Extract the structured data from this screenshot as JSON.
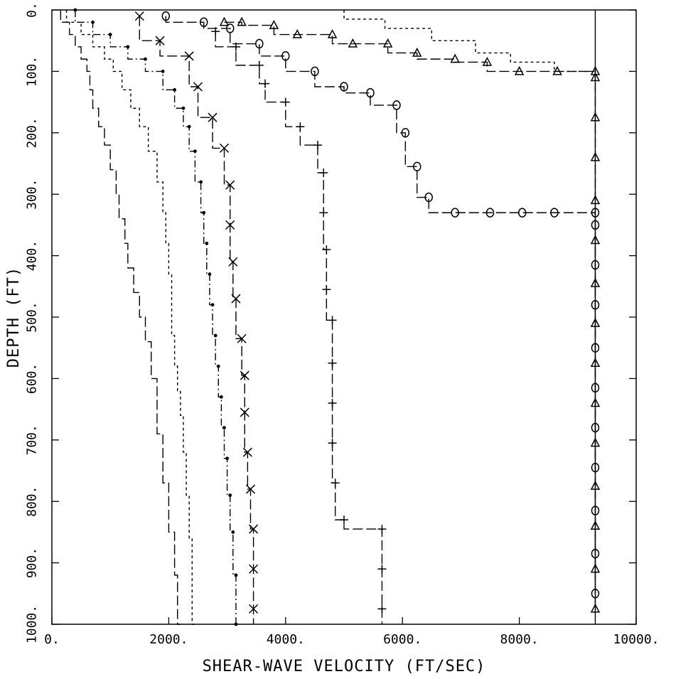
{
  "chart_data": {
    "type": "line",
    "title": "",
    "xlabel": "SHEAR-WAVE VELOCITY (FT/SEC)",
    "ylabel": "DEPTH (FT)",
    "xlim": [
      0,
      10000
    ],
    "ylim": [
      0,
      1000
    ],
    "y_inverted": true,
    "grid": false,
    "legend": "none",
    "x_ticks": [
      0,
      2000,
      4000,
      6000,
      8000,
      10000
    ],
    "x_tick_labels": [
      "0.",
      "2000.",
      "4000.",
      "6000.",
      "8000.",
      "10000."
    ],
    "y_ticks": [
      0,
      100,
      200,
      300,
      400,
      500,
      600,
      700,
      800,
      900,
      1000
    ],
    "y_tick_labels": [
      "0.",
      "100.",
      "200.",
      "300.",
      "400.",
      "500.",
      "600.",
      "700.",
      "800.",
      "900.",
      "1000."
    ],
    "series": [
      {
        "marker": "none",
        "style": "long-dash",
        "points": [
          [
            150,
            0
          ],
          [
            300,
            20
          ],
          [
            400,
            40
          ],
          [
            500,
            60
          ],
          [
            600,
            80
          ],
          [
            650,
            100
          ],
          [
            700,
            130
          ],
          [
            800,
            160
          ],
          [
            900,
            190
          ],
          [
            1000,
            220
          ],
          [
            1100,
            260
          ],
          [
            1150,
            300
          ],
          [
            1250,
            340
          ],
          [
            1300,
            380
          ],
          [
            1400,
            420
          ],
          [
            1500,
            460
          ],
          [
            1600,
            500
          ],
          [
            1700,
            540
          ],
          [
            1800,
            600
          ],
          [
            1900,
            690
          ],
          [
            2000,
            770
          ],
          [
            2100,
            850
          ],
          [
            2150,
            920
          ],
          [
            2200,
            1000
          ]
        ]
      },
      {
        "marker": "none",
        "style": "short-dash",
        "points": [
          [
            250,
            0
          ],
          [
            500,
            20
          ],
          [
            700,
            40
          ],
          [
            900,
            60
          ],
          [
            1050,
            80
          ],
          [
            1200,
            100
          ],
          [
            1350,
            130
          ],
          [
            1500,
            160
          ],
          [
            1650,
            190
          ],
          [
            1800,
            230
          ],
          [
            1900,
            280
          ],
          [
            1950,
            330
          ],
          [
            2000,
            380
          ],
          [
            2050,
            430
          ],
          [
            2050,
            480
          ],
          [
            2100,
            530
          ],
          [
            2150,
            580
          ],
          [
            2200,
            620
          ],
          [
            2250,
            660
          ],
          [
            2300,
            720
          ],
          [
            2350,
            790
          ],
          [
            2400,
            860
          ],
          [
            2450,
            1000
          ]
        ]
      },
      {
        "marker": "dot",
        "style": "dash-dot",
        "points": [
          [
            400,
            0
          ],
          [
            700,
            20
          ],
          [
            1000,
            40
          ],
          [
            1300,
            60
          ],
          [
            1600,
            80
          ],
          [
            1900,
            100
          ],
          [
            2100,
            130
          ],
          [
            2250,
            160
          ],
          [
            2350,
            190
          ],
          [
            2450,
            230
          ],
          [
            2550,
            280
          ],
          [
            2600,
            330
          ],
          [
            2650,
            380
          ],
          [
            2700,
            430
          ],
          [
            2750,
            480
          ],
          [
            2800,
            530
          ],
          [
            2850,
            580
          ],
          [
            2900,
            630
          ],
          [
            2950,
            680
          ],
          [
            3000,
            730
          ],
          [
            3050,
            790
          ],
          [
            3100,
            850
          ],
          [
            3150,
            920
          ],
          [
            3150,
            1000
          ]
        ]
      },
      {
        "marker": "x",
        "style": "long-dash",
        "points": [
          [
            1500,
            10
          ],
          [
            1850,
            50
          ],
          [
            2350,
            75
          ],
          [
            2500,
            125
          ],
          [
            2750,
            175
          ],
          [
            2950,
            225
          ],
          [
            3050,
            285
          ],
          [
            3050,
            350
          ],
          [
            3100,
            410
          ],
          [
            3150,
            470
          ],
          [
            3250,
            535
          ],
          [
            3300,
            595
          ],
          [
            3300,
            655
          ],
          [
            3350,
            720
          ],
          [
            3400,
            780
          ],
          [
            3450,
            845
          ],
          [
            3450,
            910
          ],
          [
            3450,
            975
          ]
        ]
      },
      {
        "marker": "plus",
        "style": "long-dash",
        "points": [
          [
            2800,
            35
          ],
          [
            3150,
            60
          ],
          [
            3550,
            90
          ],
          [
            3650,
            120
          ],
          [
            4000,
            150
          ],
          [
            4250,
            190
          ],
          [
            4550,
            220
          ],
          [
            4650,
            265
          ],
          [
            4650,
            330
          ],
          [
            4700,
            390
          ],
          [
            4700,
            455
          ],
          [
            4800,
            505
          ],
          [
            4800,
            575
          ],
          [
            4800,
            640
          ],
          [
            4800,
            705
          ],
          [
            4850,
            770
          ],
          [
            5000,
            830
          ],
          [
            5650,
            845
          ],
          [
            5650,
            910
          ],
          [
            5650,
            975
          ]
        ]
      },
      {
        "marker": "circle",
        "style": "long-dash",
        "points": [
          [
            1950,
            10
          ],
          [
            2600,
            20
          ],
          [
            3050,
            30
          ],
          [
            3550,
            55
          ],
          [
            4000,
            75
          ],
          [
            4500,
            100
          ],
          [
            5000,
            125
          ],
          [
            5450,
            135
          ],
          [
            5900,
            155
          ],
          [
            6050,
            200
          ],
          [
            6250,
            255
          ],
          [
            6450,
            305
          ],
          [
            6900,
            330
          ],
          [
            7500,
            330
          ],
          [
            8050,
            330
          ],
          [
            8600,
            330
          ],
          [
            9300,
            330
          ],
          [
            9300,
            350
          ],
          [
            9300,
            415
          ],
          [
            9300,
            480
          ],
          [
            9300,
            550
          ],
          [
            9300,
            615
          ],
          [
            9300,
            680
          ],
          [
            9300,
            745
          ],
          [
            9300,
            815
          ],
          [
            9300,
            885
          ],
          [
            9300,
            950
          ]
        ]
      },
      {
        "marker": "triangle",
        "style": "long-dash",
        "points": [
          [
            2950,
            20
          ],
          [
            3250,
            20
          ],
          [
            3800,
            25
          ],
          [
            4200,
            40
          ],
          [
            4800,
            40
          ],
          [
            5150,
            55
          ],
          [
            5750,
            55
          ],
          [
            6250,
            70
          ],
          [
            6900,
            80
          ],
          [
            7450,
            85
          ],
          [
            8000,
            100
          ],
          [
            8650,
            100
          ],
          [
            9300,
            100
          ],
          [
            9300,
            110
          ],
          [
            9300,
            175
          ],
          [
            9300,
            240
          ],
          [
            9300,
            310
          ],
          [
            9300,
            375
          ],
          [
            9300,
            445
          ],
          [
            9300,
            510
          ],
          [
            9300,
            575
          ],
          [
            9300,
            640
          ],
          [
            9300,
            705
          ],
          [
            9300,
            775
          ],
          [
            9300,
            840
          ],
          [
            9300,
            910
          ],
          [
            9300,
            975
          ]
        ]
      },
      {
        "marker": "none",
        "style": "short-dash",
        "points": [
          [
            5000,
            0
          ],
          [
            5000,
            15
          ],
          [
            5700,
            15
          ],
          [
            5700,
            30
          ],
          [
            6500,
            30
          ],
          [
            6500,
            50
          ],
          [
            7250,
            50
          ],
          [
            7250,
            70
          ],
          [
            7850,
            70
          ],
          [
            7850,
            85
          ],
          [
            8600,
            85
          ],
          [
            8600,
            100
          ],
          [
            9300,
            100
          ]
        ]
      },
      {
        "marker": "none",
        "style": "solid",
        "points": [
          [
            9300,
            0
          ],
          [
            9300,
            1000
          ]
        ]
      }
    ]
  }
}
